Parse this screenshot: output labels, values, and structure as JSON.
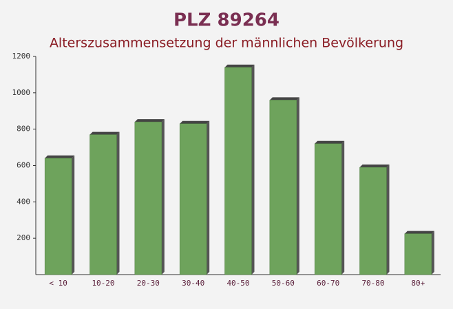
{
  "chart_data": {
    "type": "bar",
    "title": "PLZ 89264",
    "subtitle": "Alterszusammensetzung der männlichen Bevölkerung",
    "categories": [
      "< 10",
      "10-20",
      "20-30",
      "30-40",
      "40-50",
      "50-60",
      "60-70",
      "70-80",
      "80+"
    ],
    "values": [
      640,
      770,
      840,
      830,
      1140,
      960,
      720,
      590,
      225
    ],
    "color": "#6ea35c",
    "ylim": [
      0,
      1200
    ],
    "yticks": [
      200,
      400,
      600,
      800,
      1000,
      1200
    ],
    "grid": false
  }
}
